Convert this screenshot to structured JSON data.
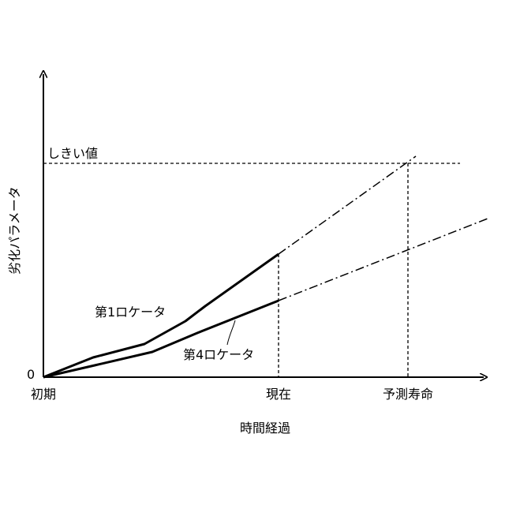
{
  "diagram": {
    "y_axis_label": "劣化パラメータ",
    "x_axis_label": "時間経過",
    "origin_label": "0",
    "threshold_label": "しきい値",
    "x_ticks": {
      "initial": "初期",
      "present": "現在",
      "predicted_life": "予測寿命"
    },
    "rotor_1_label": "第1ロケータ",
    "rotor_4_label": "第4ロケータ"
  }
}
